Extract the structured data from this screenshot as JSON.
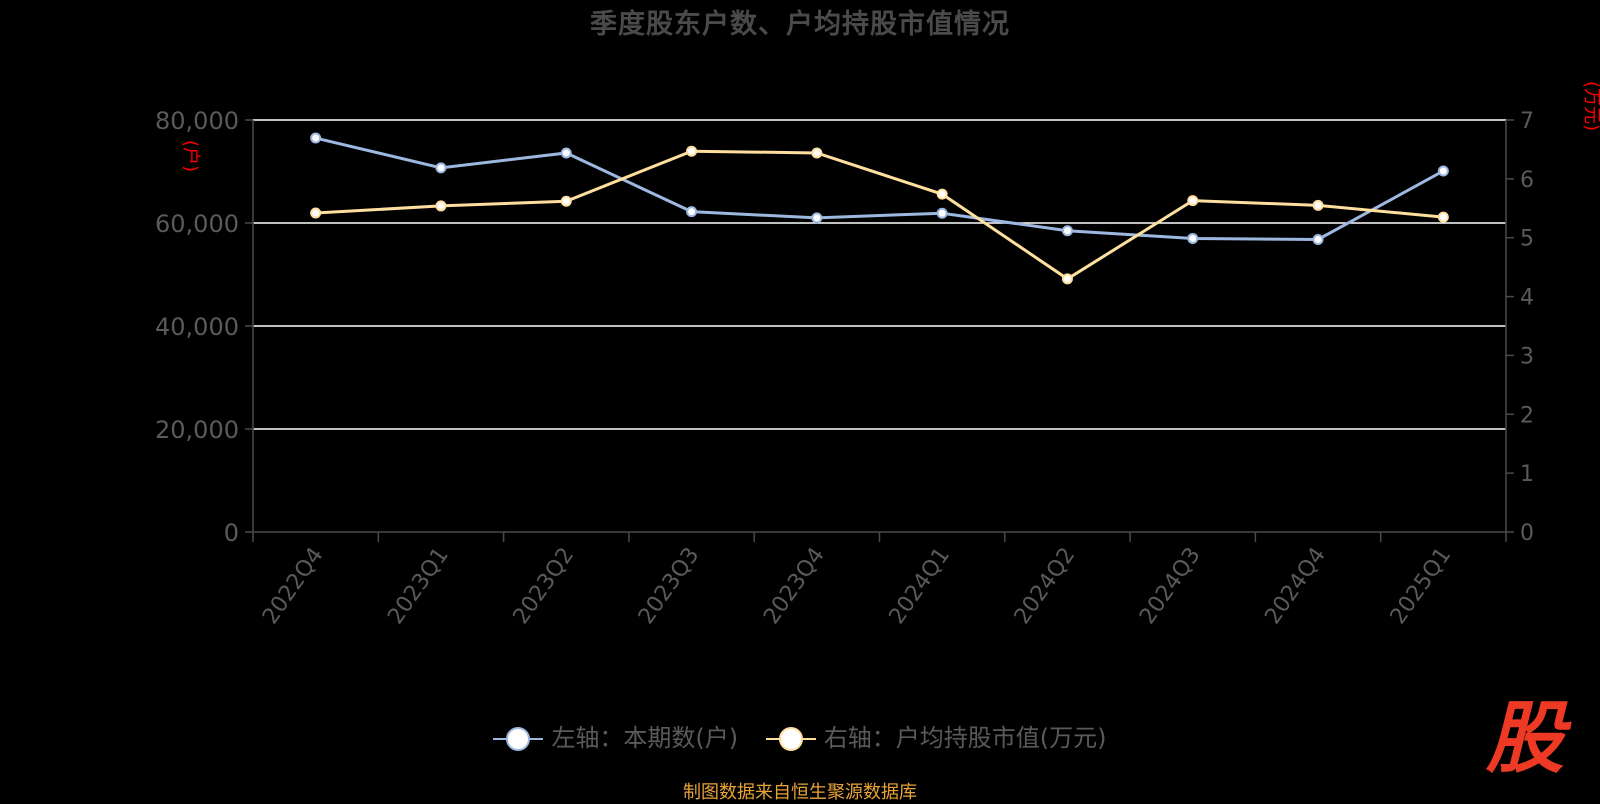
{
  "title": "季度股东户数、户均持股市值情况",
  "left_axis_unit": "(户)",
  "right_axis_unit": "(万元)",
  "legend": {
    "left_series": "左轴：本期数(户)",
    "right_series": "右轴：户均持股市值(万元)"
  },
  "source_note": "制图数据来自恒生聚源数据库",
  "logo_text": "股",
  "colors": {
    "left_series": "#9db8e0",
    "right_series": "#ffdf9e",
    "axis_unit": "#ff0000",
    "grid": "#ffffff",
    "axis_text": "#5a5a5a",
    "source": "#e8a33a",
    "logo": "#ee3a24"
  },
  "chart_data": {
    "type": "line",
    "title": "季度股东户数、户均持股市值情况",
    "categories": [
      "2022Q4",
      "2023Q1",
      "2023Q2",
      "2023Q3",
      "2023Q4",
      "2024Q1",
      "2024Q2",
      "2024Q3",
      "2024Q4",
      "2025Q1"
    ],
    "series": [
      {
        "name": "左轴：本期数(户)",
        "axis": "left",
        "values": [
          76500,
          70700,
          73600,
          62200,
          61000,
          61900,
          58500,
          57000,
          56800,
          70100
        ]
      },
      {
        "name": "右轴：户均持股市值(万元)",
        "axis": "right",
        "values": [
          5.42,
          5.54,
          5.62,
          6.47,
          6.44,
          5.74,
          4.3,
          5.63,
          5.55,
          5.35
        ]
      }
    ],
    "left_axis": {
      "range": [
        0,
        80000
      ],
      "ticks": [
        0,
        20000,
        40000,
        60000,
        80000
      ],
      "tick_labels": [
        "0",
        "20,000",
        "40,000",
        "60,000",
        "80,000"
      ],
      "unit": "(户)"
    },
    "right_axis": {
      "range": [
        0,
        7
      ],
      "ticks": [
        0,
        1,
        2,
        3,
        4,
        5,
        6,
        7
      ],
      "tick_labels": [
        "0",
        "1",
        "2",
        "3",
        "4",
        "5",
        "6",
        "7"
      ],
      "unit": "(万元)"
    },
    "grid": true,
    "legend_position": "bottom"
  }
}
